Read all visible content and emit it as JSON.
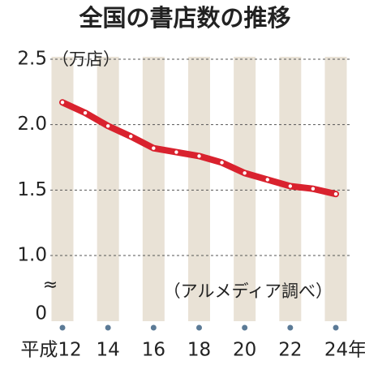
{
  "chart_data": {
    "type": "line",
    "title": "全国の書店数の推移",
    "y_unit": "（万店）",
    "source": "（アルメディア調べ）",
    "axis_break_symbol": "≈",
    "categories": [
      "平成12",
      null,
      "14",
      null,
      "16",
      null,
      "18",
      null,
      "20",
      null,
      "22",
      null,
      "24年"
    ],
    "series": [
      {
        "name": "書店数",
        "color": "#d9222e",
        "values": [
          2.17,
          2.09,
          1.99,
          1.91,
          1.82,
          1.79,
          1.76,
          1.71,
          1.63,
          1.58,
          1.53,
          1.51,
          1.47
        ]
      }
    ],
    "ylim": [
      0,
      2.5
    ],
    "yticks": [
      0,
      {
        "value": 1.0,
        "label": "1.0"
      },
      1.5,
      {
        "value": 2.0,
        "label": "2.0"
      },
      2.5
    ],
    "grid": true
  }
}
